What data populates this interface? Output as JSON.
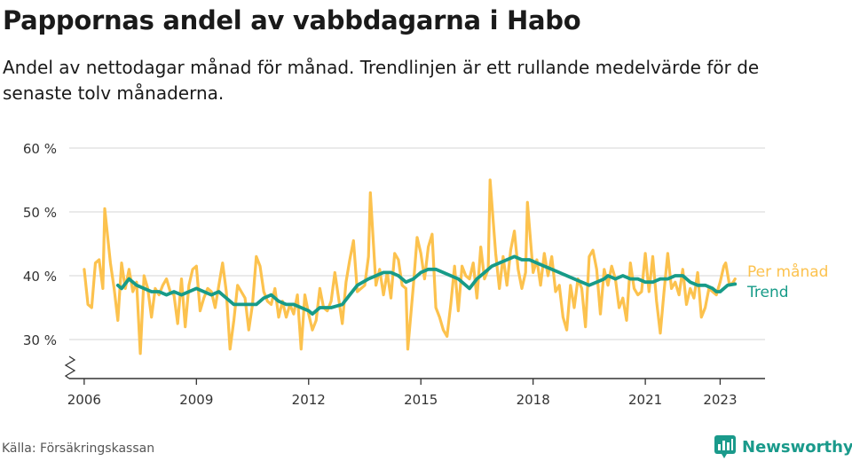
{
  "title": "Pappornas andel av vabbdagarna i Habo",
  "subtitle": "Andel av nettodagar månad för månad. Trendlinjen är ett rullande medelvärde för de senaste tolv månaderna.",
  "source": "Källa: Försäkringskassan",
  "brand": "Newsworthy",
  "colors": {
    "monthly": "#fcc24e",
    "trend": "#179b88",
    "brand": "#1a9a8b",
    "grid": "#dddddd",
    "axis": "#333333"
  },
  "chart_data": {
    "type": "line",
    "x_unit": "year (decimal)",
    "y_unit": "percent",
    "ylim": [
      24,
      60
    ],
    "xlim": [
      2005.6,
      2024.2
    ],
    "y_ticks": [
      30,
      40,
      50,
      60
    ],
    "y_tick_labels": [
      "30 %",
      "40 %",
      "50 %",
      "60 %"
    ],
    "x_ticks": [
      2006,
      2009,
      2012,
      2015,
      2018,
      2021,
      2023
    ],
    "x_tick_labels": [
      "2006",
      "2009",
      "2012",
      "2015",
      "2018",
      "2021",
      "2023"
    ],
    "grid": true,
    "legend": "inline labels at right end of lines",
    "axis_break": true,
    "series": [
      {
        "name": "Per månad",
        "color": "#fcc24e",
        "points": [
          [
            2006.0,
            41.0
          ],
          [
            2006.1,
            35.5
          ],
          [
            2006.2,
            35.0
          ],
          [
            2006.3,
            42.0
          ],
          [
            2006.4,
            42.5
          ],
          [
            2006.5,
            38.0
          ],
          [
            2006.55,
            50.5
          ],
          [
            2006.7,
            42.0
          ],
          [
            2006.8,
            38.0
          ],
          [
            2006.9,
            33.0
          ],
          [
            2007.0,
            42.0
          ],
          [
            2007.1,
            38.0
          ],
          [
            2007.2,
            41.0
          ],
          [
            2007.3,
            37.5
          ],
          [
            2007.4,
            39.0
          ],
          [
            2007.5,
            27.8
          ],
          [
            2007.6,
            40.0
          ],
          [
            2007.7,
            38.0
          ],
          [
            2007.8,
            33.5
          ],
          [
            2007.9,
            38.0
          ],
          [
            2008.0,
            37.0
          ],
          [
            2008.1,
            38.5
          ],
          [
            2008.2,
            39.5
          ],
          [
            2008.3,
            37.5
          ],
          [
            2008.4,
            37.0
          ],
          [
            2008.5,
            32.5
          ],
          [
            2008.6,
            39.5
          ],
          [
            2008.7,
            32.0
          ],
          [
            2008.8,
            38.5
          ],
          [
            2008.9,
            41.0
          ],
          [
            2009.0,
            41.5
          ],
          [
            2009.1,
            34.5
          ],
          [
            2009.2,
            36.5
          ],
          [
            2009.3,
            38.0
          ],
          [
            2009.4,
            37.5
          ],
          [
            2009.5,
            35.0
          ],
          [
            2009.6,
            38.5
          ],
          [
            2009.7,
            42.0
          ],
          [
            2009.8,
            37.5
          ],
          [
            2009.9,
            28.5
          ],
          [
            2010.0,
            33.0
          ],
          [
            2010.1,
            38.5
          ],
          [
            2010.2,
            37.5
          ],
          [
            2010.3,
            36.5
          ],
          [
            2010.4,
            31.5
          ],
          [
            2010.5,
            35.5
          ],
          [
            2010.6,
            43.0
          ],
          [
            2010.7,
            41.5
          ],
          [
            2010.8,
            37.5
          ],
          [
            2010.9,
            36.0
          ],
          [
            2011.0,
            35.5
          ],
          [
            2011.1,
            38.0
          ],
          [
            2011.2,
            33.5
          ],
          [
            2011.3,
            36.0
          ],
          [
            2011.4,
            33.5
          ],
          [
            2011.5,
            35.5
          ],
          [
            2011.6,
            34.0
          ],
          [
            2011.7,
            37.0
          ],
          [
            2011.8,
            28.5
          ],
          [
            2011.9,
            37.0
          ],
          [
            2012.0,
            34.0
          ],
          [
            2012.1,
            31.5
          ],
          [
            2012.2,
            33.0
          ],
          [
            2012.3,
            38.0
          ],
          [
            2012.4,
            35.0
          ],
          [
            2012.5,
            34.5
          ],
          [
            2012.6,
            36.0
          ],
          [
            2012.7,
            40.5
          ],
          [
            2012.8,
            36.5
          ],
          [
            2012.9,
            32.5
          ],
          [
            2013.0,
            39.0
          ],
          [
            2013.1,
            42.5
          ],
          [
            2013.2,
            45.5
          ],
          [
            2013.3,
            37.5
          ],
          [
            2013.4,
            38.0
          ],
          [
            2013.5,
            38.5
          ],
          [
            2013.6,
            43.0
          ],
          [
            2013.65,
            53.0
          ],
          [
            2013.8,
            38.5
          ],
          [
            2013.9,
            41.0
          ],
          [
            2014.0,
            37.0
          ],
          [
            2014.1,
            40.5
          ],
          [
            2014.2,
            36.5
          ],
          [
            2014.3,
            43.5
          ],
          [
            2014.4,
            42.5
          ],
          [
            2014.5,
            38.5
          ],
          [
            2014.6,
            38.0
          ],
          [
            2014.65,
            28.5
          ],
          [
            2014.8,
            38.5
          ],
          [
            2014.9,
            46.0
          ],
          [
            2015.0,
            43.5
          ],
          [
            2015.1,
            39.5
          ],
          [
            2015.2,
            44.5
          ],
          [
            2015.3,
            46.5
          ],
          [
            2015.4,
            35.0
          ],
          [
            2015.5,
            33.5
          ],
          [
            2015.6,
            31.5
          ],
          [
            2015.7,
            30.5
          ],
          [
            2015.8,
            35.5
          ],
          [
            2015.9,
            41.5
          ],
          [
            2016.0,
            34.5
          ],
          [
            2016.1,
            41.5
          ],
          [
            2016.2,
            40.0
          ],
          [
            2016.3,
            39.5
          ],
          [
            2016.4,
            42.0
          ],
          [
            2016.5,
            36.5
          ],
          [
            2016.6,
            44.5
          ],
          [
            2016.7,
            39.5
          ],
          [
            2016.8,
            41.0
          ],
          [
            2016.85,
            55.0
          ],
          [
            2017.0,
            43.5
          ],
          [
            2017.1,
            38.0
          ],
          [
            2017.2,
            43.0
          ],
          [
            2017.3,
            38.5
          ],
          [
            2017.4,
            44.0
          ],
          [
            2017.5,
            47.0
          ],
          [
            2017.6,
            41.0
          ],
          [
            2017.7,
            38.0
          ],
          [
            2017.8,
            40.5
          ],
          [
            2017.85,
            51.5
          ],
          [
            2018.0,
            40.5
          ],
          [
            2018.1,
            42.5
          ],
          [
            2018.2,
            38.5
          ],
          [
            2018.3,
            43.5
          ],
          [
            2018.4,
            40.0
          ],
          [
            2018.5,
            43.0
          ],
          [
            2018.6,
            37.5
          ],
          [
            2018.7,
            38.5
          ],
          [
            2018.8,
            33.5
          ],
          [
            2018.9,
            31.5
          ],
          [
            2019.0,
            38.5
          ],
          [
            2019.1,
            35.0
          ],
          [
            2019.2,
            39.5
          ],
          [
            2019.3,
            38.0
          ],
          [
            2019.4,
            32.0
          ],
          [
            2019.5,
            43.0
          ],
          [
            2019.6,
            44.0
          ],
          [
            2019.7,
            41.0
          ],
          [
            2019.8,
            34.0
          ],
          [
            2019.9,
            41.0
          ],
          [
            2020.0,
            38.5
          ],
          [
            2020.1,
            41.5
          ],
          [
            2020.2,
            39.5
          ],
          [
            2020.3,
            35.0
          ],
          [
            2020.4,
            36.5
          ],
          [
            2020.5,
            33.0
          ],
          [
            2020.6,
            42.0
          ],
          [
            2020.7,
            38.0
          ],
          [
            2020.8,
            37.0
          ],
          [
            2020.9,
            37.5
          ],
          [
            2021.0,
            43.5
          ],
          [
            2021.1,
            37.5
          ],
          [
            2021.2,
            43.0
          ],
          [
            2021.3,
            36.0
          ],
          [
            2021.4,
            31.0
          ],
          [
            2021.5,
            37.5
          ],
          [
            2021.6,
            43.5
          ],
          [
            2021.7,
            38.0
          ],
          [
            2021.8,
            39.0
          ],
          [
            2021.9,
            37.0
          ],
          [
            2022.0,
            41.0
          ],
          [
            2022.1,
            35.5
          ],
          [
            2022.2,
            38.0
          ],
          [
            2022.3,
            36.5
          ],
          [
            2022.4,
            40.5
          ],
          [
            2022.5,
            33.5
          ],
          [
            2022.6,
            35.0
          ],
          [
            2022.7,
            38.0
          ],
          [
            2022.8,
            37.5
          ],
          [
            2022.9,
            37.0
          ],
          [
            2023.0,
            39.0
          ],
          [
            2023.1,
            41.5
          ],
          [
            2023.15,
            42.0
          ],
          [
            2023.25,
            38.5
          ],
          [
            2023.35,
            39.0
          ],
          [
            2023.4,
            39.5
          ]
        ]
      },
      {
        "name": "Trend",
        "color": "#179b88",
        "points": [
          [
            2006.9,
            38.5
          ],
          [
            2007.0,
            38.0
          ],
          [
            2007.2,
            39.5
          ],
          [
            2007.4,
            38.5
          ],
          [
            2007.6,
            38.0
          ],
          [
            2007.8,
            37.5
          ],
          [
            2008.0,
            37.5
          ],
          [
            2008.2,
            37.0
          ],
          [
            2008.4,
            37.5
          ],
          [
            2008.6,
            37.0
          ],
          [
            2008.8,
            37.5
          ],
          [
            2009.0,
            38.0
          ],
          [
            2009.2,
            37.5
          ],
          [
            2009.4,
            37.0
          ],
          [
            2009.6,
            37.5
          ],
          [
            2009.8,
            36.5
          ],
          [
            2010.0,
            35.5
          ],
          [
            2010.2,
            35.5
          ],
          [
            2010.4,
            35.5
          ],
          [
            2010.6,
            35.5
          ],
          [
            2010.8,
            36.5
          ],
          [
            2011.0,
            37.0
          ],
          [
            2011.2,
            36.0
          ],
          [
            2011.4,
            35.5
          ],
          [
            2011.6,
            35.5
          ],
          [
            2011.8,
            35.0
          ],
          [
            2012.0,
            34.5
          ],
          [
            2012.1,
            34.0
          ],
          [
            2012.3,
            35.0
          ],
          [
            2012.6,
            35.0
          ],
          [
            2012.9,
            35.5
          ],
          [
            2013.1,
            37.0
          ],
          [
            2013.3,
            38.5
          ],
          [
            2013.6,
            39.5
          ],
          [
            2013.8,
            40.0
          ],
          [
            2014.0,
            40.5
          ],
          [
            2014.2,
            40.5
          ],
          [
            2014.4,
            40.0
          ],
          [
            2014.6,
            39.0
          ],
          [
            2014.8,
            39.5
          ],
          [
            2015.0,
            40.5
          ],
          [
            2015.2,
            41.0
          ],
          [
            2015.4,
            41.0
          ],
          [
            2015.6,
            40.5
          ],
          [
            2015.8,
            40.0
          ],
          [
            2016.0,
            39.5
          ],
          [
            2016.2,
            38.5
          ],
          [
            2016.3,
            38.0
          ],
          [
            2016.5,
            39.5
          ],
          [
            2016.7,
            40.5
          ],
          [
            2016.9,
            41.5
          ],
          [
            2017.1,
            42.0
          ],
          [
            2017.3,
            42.5
          ],
          [
            2017.5,
            43.0
          ],
          [
            2017.7,
            42.5
          ],
          [
            2017.9,
            42.5
          ],
          [
            2018.1,
            42.0
          ],
          [
            2018.3,
            41.5
          ],
          [
            2018.5,
            41.0
          ],
          [
            2018.7,
            40.5
          ],
          [
            2018.9,
            40.0
          ],
          [
            2019.1,
            39.5
          ],
          [
            2019.3,
            39.0
          ],
          [
            2019.5,
            38.5
          ],
          [
            2019.7,
            39.0
          ],
          [
            2019.9,
            39.5
          ],
          [
            2020.0,
            40.0
          ],
          [
            2020.2,
            39.5
          ],
          [
            2020.4,
            40.0
          ],
          [
            2020.6,
            39.5
          ],
          [
            2020.8,
            39.5
          ],
          [
            2021.0,
            39.0
          ],
          [
            2021.2,
            39.0
          ],
          [
            2021.4,
            39.5
          ],
          [
            2021.6,
            39.5
          ],
          [
            2021.8,
            40.0
          ],
          [
            2022.0,
            40.0
          ],
          [
            2022.2,
            39.0
          ],
          [
            2022.4,
            38.5
          ],
          [
            2022.6,
            38.5
          ],
          [
            2022.8,
            38.0
          ],
          [
            2022.9,
            37.5
          ],
          [
            2023.0,
            37.5
          ],
          [
            2023.1,
            38.0
          ],
          [
            2023.2,
            38.5
          ],
          [
            2023.4,
            38.7
          ]
        ]
      }
    ]
  }
}
